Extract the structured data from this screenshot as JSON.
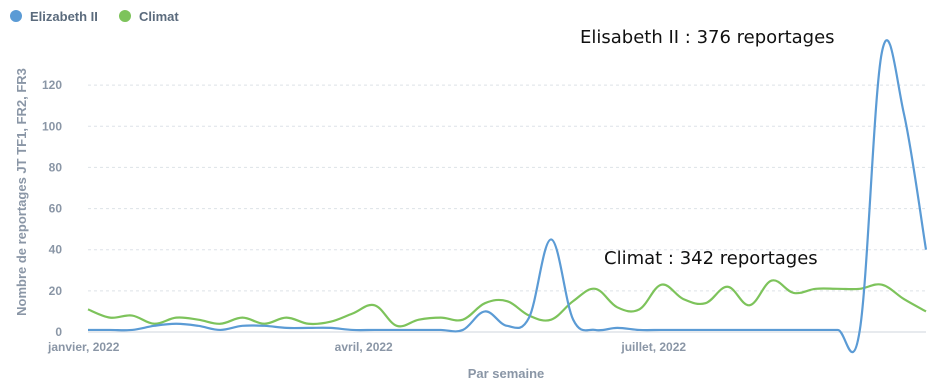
{
  "chart_data": {
    "type": "line",
    "xlabel": "Par semaine",
    "ylabel": "Nombre de reportages JT TF1, FR2, FR3",
    "ylim": [
      0,
      140
    ],
    "yticks": [
      0,
      20,
      40,
      60,
      80,
      100,
      120
    ],
    "grid": true,
    "legend_position": "top-left",
    "x_tick_labels": [
      "janvier, 2022",
      "avril, 2022",
      "juillet, 2022"
    ],
    "x": [
      "2022-01-03",
      "2022-01-10",
      "2022-01-17",
      "2022-01-24",
      "2022-01-31",
      "2022-02-07",
      "2022-02-14",
      "2022-02-21",
      "2022-02-28",
      "2022-03-07",
      "2022-03-14",
      "2022-03-21",
      "2022-03-28",
      "2022-04-04",
      "2022-04-11",
      "2022-04-18",
      "2022-04-25",
      "2022-05-02",
      "2022-05-09",
      "2022-05-16",
      "2022-05-23",
      "2022-05-30",
      "2022-06-06",
      "2022-06-13",
      "2022-06-20",
      "2022-06-27",
      "2022-07-04",
      "2022-07-11",
      "2022-07-18",
      "2022-07-25",
      "2022-08-01",
      "2022-08-08",
      "2022-08-15",
      "2022-08-22",
      "2022-08-29",
      "2022-09-05",
      "2022-09-12",
      "2022-09-19",
      "2022-09-26"
    ],
    "series": [
      {
        "name": "Elizabeth II",
        "color": "#5b9bd5",
        "values": [
          1,
          1,
          1,
          3,
          4,
          3,
          1,
          3,
          3,
          2,
          2,
          2,
          1,
          1,
          1,
          1,
          1,
          1,
          10,
          3,
          7,
          45,
          6,
          1,
          2,
          1,
          1,
          1,
          1,
          1,
          1,
          1,
          1,
          1,
          1,
          1,
          136,
          106,
          40
        ]
      },
      {
        "name": "Climat",
        "color": "#7dc35b",
        "values": [
          11,
          7,
          8,
          4,
          7,
          6,
          4,
          7,
          4,
          7,
          4,
          5,
          9,
          13,
          3,
          6,
          7,
          6,
          14,
          15,
          8,
          6,
          15,
          21,
          12,
          11,
          23,
          16,
          14,
          22,
          13,
          25,
          19,
          21,
          21,
          21,
          23,
          16,
          10
        ]
      }
    ],
    "annotations": [
      {
        "text": "Elisabeth II : 376 reportages"
      },
      {
        "text": "Climat : 342 reportages"
      }
    ]
  }
}
